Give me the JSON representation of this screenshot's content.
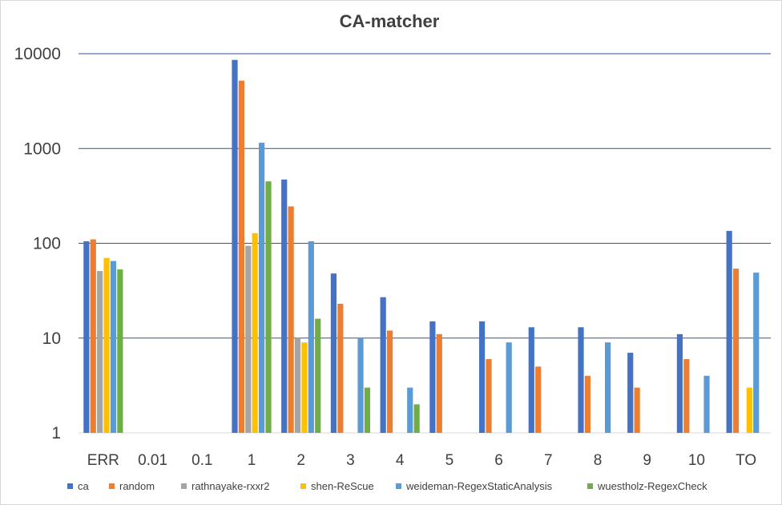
{
  "chart_data": {
    "type": "bar",
    "title": "CA-matcher",
    "y_scale": "log",
    "ylim": [
      1,
      10000
    ],
    "y_ticks": [
      "1",
      "10",
      "100",
      "1000",
      "10000"
    ],
    "grid": true,
    "legend_position": "bottom",
    "categories": [
      "ERR",
      "0.01",
      "0.1",
      "1",
      "2",
      "3",
      "4",
      "5",
      "6",
      "7",
      "8",
      "9",
      "10",
      "TO"
    ],
    "series": [
      {
        "name": "ca",
        "color": "#4472c4",
        "values": [
          105,
          null,
          null,
          8600,
          470,
          48,
          27,
          15,
          15,
          13,
          13,
          7,
          11,
          135
        ]
      },
      {
        "name": "random",
        "color": "#ed7d31",
        "values": [
          110,
          null,
          null,
          5200,
          245,
          23,
          12,
          11,
          6,
          5,
          4,
          3,
          6,
          54
        ]
      },
      {
        "name": "rathnayake-rxxr2",
        "color": "#a5a5a5",
        "values": [
          51,
          null,
          null,
          94,
          10,
          null,
          null,
          null,
          null,
          null,
          null,
          null,
          null,
          null
        ]
      },
      {
        "name": "shen-ReScue",
        "color": "#ffc000",
        "values": [
          70,
          null,
          null,
          128,
          9,
          null,
          null,
          null,
          null,
          null,
          null,
          null,
          null,
          3
        ]
      },
      {
        "name": "weideman-RegexStaticAnalysis",
        "color": "#5b9bd5",
        "values": [
          65,
          null,
          null,
          1150,
          105,
          10,
          3,
          null,
          9,
          null,
          9,
          null,
          4,
          49
        ]
      },
      {
        "name": "wuestholz-RegexCheck",
        "color": "#70ad47",
        "values": [
          53,
          null,
          null,
          450,
          16,
          3,
          2,
          null,
          null,
          null,
          null,
          null,
          null,
          null
        ]
      }
    ]
  }
}
